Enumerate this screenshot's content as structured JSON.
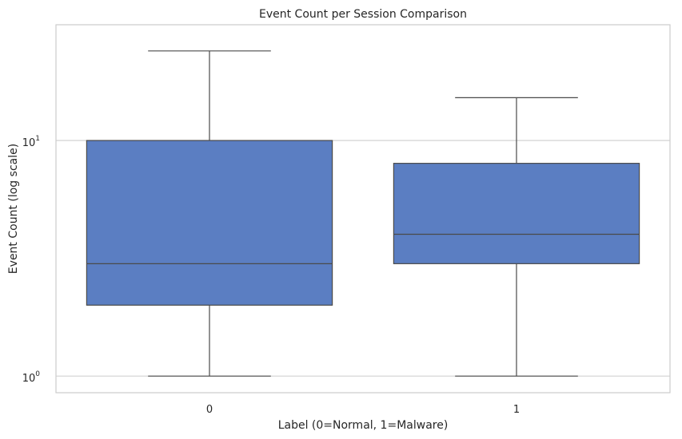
{
  "chart_data": {
    "type": "boxplot",
    "title": "Event Count per Session Comparison",
    "xlabel": "Label (0=Normal, 1=Malware)",
    "ylabel": "Event Count (log scale)",
    "yscale": "log",
    "ylim": [
      0.85,
      31
    ],
    "grid": true,
    "categories": [
      "0",
      "1"
    ],
    "y_ticks": [
      {
        "value": 1,
        "base": "10",
        "exp": "0"
      },
      {
        "value": 10,
        "base": "10",
        "exp": "1"
      }
    ],
    "boxes": [
      {
        "category": "0",
        "whisker_low": 1,
        "q1": 2,
        "median": 3,
        "q3": 10,
        "whisker_high": 24
      },
      {
        "category": "1",
        "whisker_low": 1,
        "q1": 3,
        "median": 4,
        "q3": 8,
        "whisker_high": 15.2
      }
    ],
    "colors": {
      "box_fill": "#5b7ec2",
      "line": "#4a4a4a",
      "grid": "#d2d2d2",
      "frame": "#cccccc"
    }
  }
}
